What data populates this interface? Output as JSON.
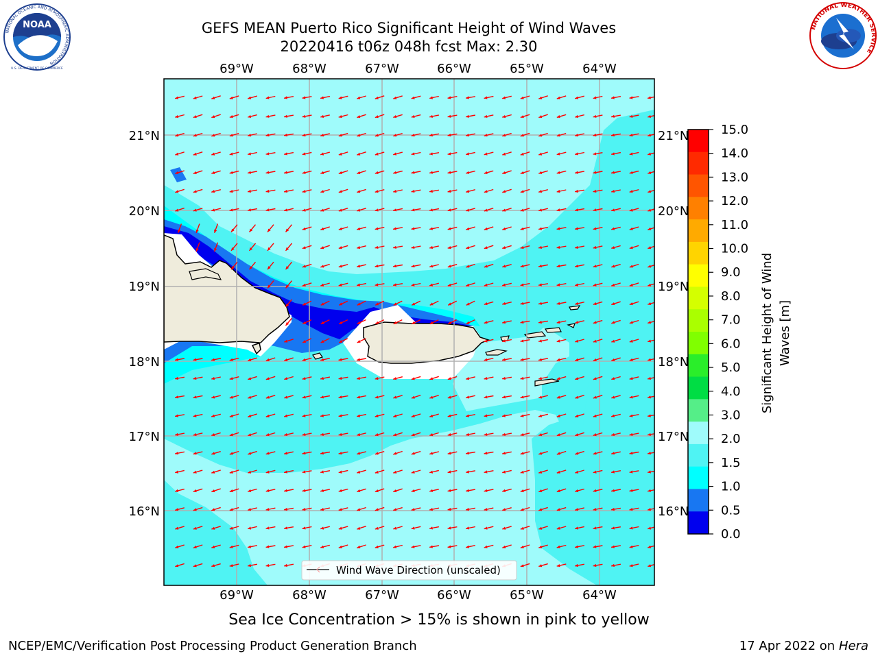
{
  "header": {
    "title_line1": "GEFS MEAN Puerto Rico Significant Height of Wind Waves",
    "title_line2": "20220416 t06z 048h fcst   Max: 2.30"
  },
  "logos": {
    "left": {
      "name": "NOAA",
      "ring_text": "NATIONAL OCEANIC AND ATMOSPHERIC ADMINISTRATION",
      "bottom_text": "U.S. DEPARTMENT OF COMMERCE"
    },
    "right": {
      "ring_text": "NATIONAL WEATHER SERVICE"
    }
  },
  "map": {
    "lon_labels": [
      "69°W",
      "68°W",
      "67°W",
      "66°W",
      "65°W",
      "64°W"
    ],
    "lat_labels": [
      "21°N",
      "20°N",
      "19°N",
      "18°N",
      "17°N",
      "16°N"
    ],
    "legend_label": "Wind Wave Direction (unscaled)",
    "colors": {
      "ocean_light": "#9ffbfb",
      "ocean_mid": "#4ff3f3",
      "ocean_cyan": "#00ffff",
      "blue": "#1877f2",
      "dark_blue": "#0000ee",
      "land": "#efecdc",
      "arrow": "#ff0000"
    }
  },
  "colorbar": {
    "title_line1": "Significant Height of Wind",
    "title_line2": "Waves [m]",
    "ticks": [
      "15.0",
      "14.0",
      "13.0",
      "12.0",
      "11.0",
      "10.0",
      "9.0",
      "8.0",
      "7.0",
      "6.0",
      "5.0",
      "4.0",
      "3.0",
      "2.0",
      "1.5",
      "1.0",
      "0.5",
      "0.0"
    ],
    "colors_top_to_bottom": [
      "#ff0000",
      "#ff2a00",
      "#ff5500",
      "#ff8000",
      "#ffaa00",
      "#ffd400",
      "#ffff00",
      "#d4ff00",
      "#aaff00",
      "#80ff00",
      "#2aee2a",
      "#00dd44",
      "#55ee88",
      "#9ffbfb",
      "#4ff3f3",
      "#00ffff",
      "#1877f2",
      "#0000ee"
    ]
  },
  "caption": "Sea Ice Concentration > 15% is shown in pink to yellow",
  "footer": {
    "left": "NCEP/EMC/Verification Post Processing Product Generation Branch",
    "right_prefix": "17 Apr 2022 on ",
    "right_host": "Hera"
  }
}
